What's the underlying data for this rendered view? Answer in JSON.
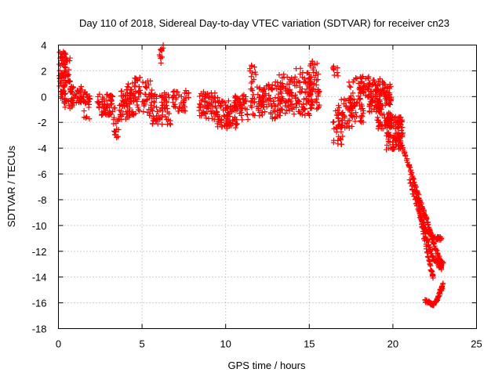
{
  "chart_data": {
    "type": "scatter",
    "title": "Day 110 of 2018, Sidereal Day-to-day VTEC variation (SDTVAR) for receiver cn23",
    "xlabel": "GPS time / hours",
    "ylabel": "SDTVAR / TECUs",
    "xlim": [
      0,
      25
    ],
    "ylim": [
      -18,
      4
    ],
    "xticks": [
      0,
      5,
      10,
      15,
      20,
      25
    ],
    "yticks": [
      4,
      2,
      0,
      -2,
      -4,
      -6,
      -8,
      -10,
      -12,
      -14,
      -16,
      -18
    ],
    "grid": true,
    "marker": "plus",
    "color": "#ff0000",
    "series": [
      {
        "name": "SDTVAR",
        "clusters": [
          {
            "x": [
              0.05,
              0.45
            ],
            "y": [
              -0.3,
              3.5
            ],
            "n": 70
          },
          {
            "x": [
              0.4,
              0.7
            ],
            "y": [
              1.0,
              3.0
            ],
            "n": 22
          },
          {
            "x": [
              0.3,
              0.9
            ],
            "y": [
              -1.0,
              -0.2
            ],
            "n": 14
          },
          {
            "x": [
              0.7,
              1.5
            ],
            "y": [
              -0.5,
              0.8
            ],
            "n": 45
          },
          {
            "x": [
              1.5,
              1.9
            ],
            "y": [
              -1.8,
              0.5
            ],
            "n": 25
          },
          {
            "x": [
              2.3,
              3.4
            ],
            "y": [
              -1.5,
              0.2
            ],
            "n": 65
          },
          {
            "x": [
              3.3,
              3.6
            ],
            "y": [
              -3.2,
              -1.6
            ],
            "n": 16
          },
          {
            "x": [
              3.6,
              4.4
            ],
            "y": [
              -1.8,
              0.5
            ],
            "n": 45
          },
          {
            "x": [
              4.0,
              4.5
            ],
            "y": [
              -0.6,
              1.0
            ],
            "n": 20
          },
          {
            "x": [
              4.4,
              5.6
            ],
            "y": [
              -1.5,
              1.5
            ],
            "n": 70
          },
          {
            "x": [
              5.5,
              6.7
            ],
            "y": [
              -2.2,
              0.3
            ],
            "n": 70
          },
          {
            "x": [
              6.0,
              6.3
            ],
            "y": [
              2.5,
              4.0
            ],
            "n": 12
          },
          {
            "x": [
              6.8,
              7.8
            ],
            "y": [
              -1.2,
              0.5
            ],
            "n": 40
          },
          {
            "x": [
              8.4,
              9.6
            ],
            "y": [
              -1.8,
              0.4
            ],
            "n": 70
          },
          {
            "x": [
              9.5,
              10.7
            ],
            "y": [
              -2.5,
              -0.3
            ],
            "n": 85
          },
          {
            "x": [
              10.5,
              11.4
            ],
            "y": [
              -1.8,
              0.3
            ],
            "n": 45
          },
          {
            "x": [
              11.4,
              11.8
            ],
            "y": [
              1.0,
              2.5
            ],
            "n": 12
          },
          {
            "x": [
              11.5,
              12.4
            ],
            "y": [
              -1.5,
              0.8
            ],
            "n": 45
          },
          {
            "x": [
              12.2,
              13.3
            ],
            "y": [
              -1.9,
              1.2
            ],
            "n": 65
          },
          {
            "x": [
              13.2,
              14.2
            ],
            "y": [
              -1.5,
              1.8
            ],
            "n": 70
          },
          {
            "x": [
              14.2,
              15.2
            ],
            "y": [
              -1.5,
              2.2
            ],
            "n": 80
          },
          {
            "x": [
              15.0,
              15.6
            ],
            "y": [
              -1.0,
              2.8
            ],
            "n": 50
          },
          {
            "x": [
              16.4,
              16.9
            ],
            "y": [
              1.5,
              2.5
            ],
            "n": 8
          },
          {
            "x": [
              16.4,
              17.0
            ],
            "y": [
              -3.8,
              -1.0
            ],
            "n": 30
          },
          {
            "x": [
              16.7,
              17.7
            ],
            "y": [
              -2.5,
              0.0
            ],
            "n": 50
          },
          {
            "x": [
              17.3,
              18.3
            ],
            "y": [
              -2.0,
              1.5
            ],
            "n": 55
          },
          {
            "x": [
              17.9,
              18.6
            ],
            "y": [
              0.0,
              1.6
            ],
            "n": 30
          },
          {
            "x": [
              18.5,
              19.4
            ],
            "y": [
              -1.2,
              1.4
            ],
            "n": 70
          },
          {
            "x": [
              19.0,
              19.9
            ],
            "y": [
              -2.5,
              1.2
            ],
            "n": 110
          },
          {
            "x": [
              19.6,
              20.6
            ],
            "y": [
              -4.2,
              -1.5
            ],
            "n": 110
          }
        ],
        "tracks": [
          {
            "points": [
              [
                20.3,
                -3.0
              ],
              [
                21.0,
                -5.5
              ],
              [
                21.6,
                -8.0
              ],
              [
                22.0,
                -9.5
              ],
              [
                22.4,
                -11.3
              ],
              [
                22.8,
                -12.6
              ],
              [
                22.9,
                -13.3
              ]
            ],
            "n": 140
          },
          {
            "points": [
              [
                21.2,
                -6.5
              ],
              [
                21.7,
                -9.5
              ],
              [
                22.0,
                -11.0
              ],
              [
                22.4,
                -12.5
              ],
              [
                22.8,
                -13.2
              ],
              [
                23.0,
                -12.8
              ]
            ],
            "n": 90
          },
          {
            "points": [
              [
                21.5,
                -8.0
              ],
              [
                21.8,
                -10.5
              ],
              [
                22.1,
                -12.3
              ],
              [
                22.3,
                -13.5
              ],
              [
                22.4,
                -14.0
              ]
            ],
            "n": 40
          },
          {
            "points": [
              [
                21.0,
                -6.5
              ],
              [
                21.5,
                -8.8
              ],
              [
                22.0,
                -10.5
              ],
              [
                22.6,
                -11.0
              ],
              [
                22.9,
                -11.0
              ]
            ],
            "n": 60
          },
          {
            "points": [
              [
                21.9,
                -15.8
              ],
              [
                22.2,
                -16.0
              ],
              [
                22.4,
                -16.2
              ],
              [
                22.6,
                -15.9
              ],
              [
                22.8,
                -15.2
              ],
              [
                23.0,
                -14.6
              ]
            ],
            "n": 70
          }
        ]
      }
    ]
  }
}
